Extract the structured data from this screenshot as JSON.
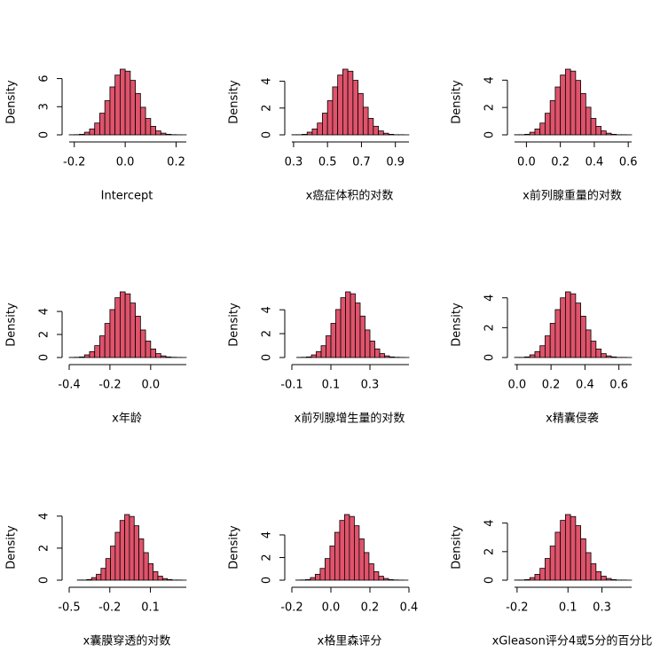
{
  "chart_data": [
    {
      "type": "histogram",
      "xlabel": "Intercept",
      "ylabel": "Density",
      "color": "#df536b",
      "bins": [
        -0.22,
        -0.2,
        -0.18,
        -0.16,
        -0.14,
        -0.12,
        -0.1,
        -0.08,
        -0.06,
        -0.04,
        -0.02,
        0,
        0.02,
        0.04,
        0.06,
        0.08,
        0.1,
        0.12,
        0.14,
        0.16,
        0.18,
        0.2,
        0.22,
        0.24
      ],
      "values": [
        0.01,
        0.02,
        0.06,
        0.28,
        0.63,
        1.26,
        2.31,
        3.64,
        5.11,
        6.37,
        7,
        6.79,
        5.81,
        4.41,
        2.94,
        1.75,
        0.91,
        0.42,
        0.18,
        0.06,
        0.02,
        0.01,
        0.005
      ],
      "xlim": [
        -0.22,
        0.24
      ],
      "ylim": [
        0,
        7
      ],
      "xticks": [
        -0.2,
        {
          "value": 0,
          "label": "0.0"
        },
        0.2
      ],
      "yticks": [
        0,
        3,
        6
      ]
    },
    {
      "type": "histogram",
      "xlabel": "x癌症体积的对数",
      "ylabel": "Density",
      "color": "#df536b",
      "bins": [
        0.29,
        0.32,
        0.35,
        0.38,
        0.41,
        0.44,
        0.47,
        0.5,
        0.53,
        0.56,
        0.59,
        0.62,
        0.65,
        0.68,
        0.71,
        0.74,
        0.77,
        0.8,
        0.83,
        0.86,
        0.89,
        0.92,
        0.95,
        0.98
      ],
      "values": [
        0.01,
        0.01,
        0.04,
        0.2,
        0.44,
        0.88,
        1.62,
        2.55,
        3.58,
        4.46,
        4.9,
        4.75,
        4.07,
        3.09,
        2.06,
        1.23,
        0.64,
        0.29,
        0.12,
        0.04,
        0.01,
        0.01,
        0.003
      ],
      "xlim": [
        0.29,
        0.98
      ],
      "ylim": [
        0,
        4.9
      ],
      "xticks": [
        0.3,
        0.5,
        0.7,
        0.9
      ],
      "yticks": [
        0,
        2,
        4
      ]
    },
    {
      "type": "histogram",
      "xlabel": "x前列腺重量的对数",
      "ylabel": "Density",
      "color": "#df536b",
      "bins": [
        -0.07,
        -0.04,
        -0.01,
        0.02,
        0.05,
        0.08,
        0.11,
        0.14,
        0.17,
        0.2,
        0.23,
        0.26,
        0.29,
        0.32,
        0.35,
        0.38,
        0.41,
        0.44,
        0.47,
        0.5,
        0.53,
        0.56,
        0.59,
        0.62
      ],
      "values": [
        0.01,
        0.01,
        0.04,
        0.19,
        0.43,
        0.86,
        1.58,
        2.5,
        3.5,
        4.37,
        4.8,
        4.66,
        3.98,
        3.02,
        2.02,
        1.2,
        0.62,
        0.29,
        0.12,
        0.04,
        0.01,
        0.01,
        0.003
      ],
      "xlim": [
        -0.07,
        0.62
      ],
      "ylim": [
        0,
        4.8
      ],
      "xticks": [
        {
          "value": 0,
          "label": "0.0"
        },
        0.2,
        0.4,
        0.6
      ],
      "yticks": [
        0,
        2,
        4
      ]
    },
    {
      "type": "histogram",
      "xlabel": "x年龄",
      "ylabel": "Density",
      "color": "#df536b",
      "bins": [
        -0.4,
        -0.375,
        -0.35,
        -0.325,
        -0.3,
        -0.275,
        -0.25,
        -0.225,
        -0.2,
        -0.175,
        -0.15,
        -0.125,
        -0.1,
        -0.075,
        -0.05,
        -0.025,
        0,
        0.025,
        0.05,
        0.075,
        0.1,
        0.125,
        0.15,
        0.175
      ],
      "values": [
        0.01,
        0.02,
        0.05,
        0.23,
        0.51,
        1.03,
        1.88,
        2.96,
        4.16,
        5.19,
        5.7,
        5.53,
        4.73,
        3.59,
        2.39,
        1.43,
        0.74,
        0.34,
        0.14,
        0.05,
        0.02,
        0.01,
        0.004
      ],
      "xlim": [
        -0.4,
        0.175
      ],
      "ylim": [
        0,
        5.7
      ],
      "xticks": [
        -0.4,
        -0.2,
        {
          "value": 0,
          "label": "0.0"
        }
      ],
      "yticks": [
        0,
        2,
        4
      ]
    },
    {
      "type": "histogram",
      "xlabel": "x前列腺增生量的对数",
      "ylabel": "Density",
      "color": "#df536b",
      "bins": [
        -0.075,
        -0.05,
        -0.025,
        0,
        0.025,
        0.05,
        0.075,
        0.1,
        0.125,
        0.15,
        0.175,
        0.2,
        0.225,
        0.25,
        0.275,
        0.3,
        0.325,
        0.35,
        0.375,
        0.4,
        0.425,
        0.45,
        0.475,
        0.5
      ],
      "values": [
        0.01,
        0.02,
        0.05,
        0.22,
        0.5,
        0.99,
        1.82,
        2.86,
        4.02,
        5.01,
        5.5,
        5.34,
        4.57,
        3.47,
        2.31,
        1.38,
        0.72,
        0.33,
        0.14,
        0.05,
        0.02,
        0.01,
        0.004
      ],
      "xlim": [
        -0.1,
        0.5
      ],
      "ylim": [
        0,
        5.5
      ],
      "xticks": [
        -0.1,
        0.1,
        0.3
      ],
      "yticks": [
        0,
        2,
        4
      ]
    },
    {
      "type": "histogram",
      "xlabel": "x精囊侵袭",
      "ylabel": "Density",
      "color": "#df536b",
      "bins": [
        -0.015,
        0.015,
        0.045,
        0.075,
        0.105,
        0.135,
        0.165,
        0.195,
        0.225,
        0.255,
        0.285,
        0.315,
        0.345,
        0.375,
        0.405,
        0.435,
        0.465,
        0.495,
        0.525,
        0.555,
        0.585,
        0.615,
        0.645,
        0.675
      ],
      "values": [
        0.01,
        0.01,
        0.04,
        0.18,
        0.4,
        0.79,
        1.45,
        2.29,
        3.21,
        4,
        4.4,
        4.27,
        3.65,
        2.77,
        1.85,
        1.1,
        0.57,
        0.26,
        0.11,
        0.04,
        0.01,
        0.01,
        0.003
      ],
      "xlim": [
        -0.015,
        0.675
      ],
      "ylim": [
        0,
        4.4
      ],
      "xticks": [
        {
          "value": 0,
          "label": "0.0"
        },
        0.2,
        0.4,
        0.6
      ],
      "yticks": [
        0,
        2,
        4
      ]
    },
    {
      "type": "histogram",
      "xlabel": "x囊膜穿透的对数",
      "ylabel": "Density",
      "color": "#df536b",
      "bins": [
        -0.44,
        -0.405,
        -0.37,
        -0.335,
        -0.3,
        -0.265,
        -0.23,
        -0.195,
        -0.16,
        -0.125,
        -0.09,
        -0.055,
        -0.02,
        0.015,
        0.05,
        0.085,
        0.12,
        0.155,
        0.19,
        0.225,
        0.26,
        0.295,
        0.33,
        0.365
      ],
      "values": [
        0.01,
        0.01,
        0.04,
        0.16,
        0.37,
        0.74,
        1.35,
        2.13,
        2.99,
        3.73,
        4.1,
        3.98,
        3.4,
        2.58,
        1.72,
        1.03,
        0.53,
        0.25,
        0.1,
        0.04,
        0.01,
        0.01,
        0.003
      ],
      "xlim": [
        -0.5,
        0.365
      ],
      "ylim": [
        0,
        4.1
      ],
      "xticks": [
        -0.5,
        -0.2,
        0.1
      ],
      "yticks": [
        0,
        2,
        4
      ]
    },
    {
      "type": "histogram",
      "xlabel": "x格里森评分",
      "ylabel": "Density",
      "color": "#df536b",
      "bins": [
        -0.18,
        -0.155,
        -0.13,
        -0.105,
        -0.08,
        -0.055,
        -0.03,
        -0.005,
        0.02,
        0.045,
        0.07,
        0.095,
        0.12,
        0.145,
        0.17,
        0.195,
        0.22,
        0.245,
        0.27,
        0.295,
        0.32,
        0.345,
        0.37,
        0.395
      ],
      "values": [
        0.01,
        0.02,
        0.05,
        0.23,
        0.52,
        1.04,
        1.91,
        3.02,
        4.23,
        5.28,
        5.8,
        5.63,
        4.81,
        3.65,
        2.44,
        1.45,
        0.75,
        0.35,
        0.15,
        0.05,
        0.02,
        0.01,
        0.004
      ],
      "xlim": [
        -0.2,
        0.4
      ],
      "ylim": [
        0,
        5.8
      ],
      "xticks": [
        -0.2,
        {
          "value": 0,
          "label": "0.0"
        },
        0.2,
        0.4
      ],
      "yticks": [
        0,
        2,
        4
      ]
    },
    {
      "type": "histogram",
      "xlabel": "xGleason评分4或5分的百分比",
      "ylabel": "Density",
      "color": "#df536b",
      "bins": [
        -0.215,
        -0.185,
        -0.155,
        -0.125,
        -0.095,
        -0.065,
        -0.035,
        -0.005,
        0.025,
        0.055,
        0.085,
        0.115,
        0.145,
        0.175,
        0.205,
        0.235,
        0.265,
        0.295,
        0.325,
        0.355,
        0.385,
        0.415,
        0.445,
        0.475
      ],
      "values": [
        0.01,
        0.01,
        0.04,
        0.18,
        0.41,
        0.83,
        1.52,
        2.39,
        3.36,
        4.19,
        4.6,
        4.46,
        3.82,
        2.9,
        1.93,
        1.15,
        0.6,
        0.28,
        0.12,
        0.04,
        0.01,
        0.01,
        0.003
      ],
      "xlim": [
        -0.215,
        0.475
      ],
      "ylim": [
        0,
        4.6
      ],
      "xticks": [
        -0.2,
        0.1,
        0.3
      ],
      "yticks": [
        0,
        2,
        4
      ]
    }
  ]
}
